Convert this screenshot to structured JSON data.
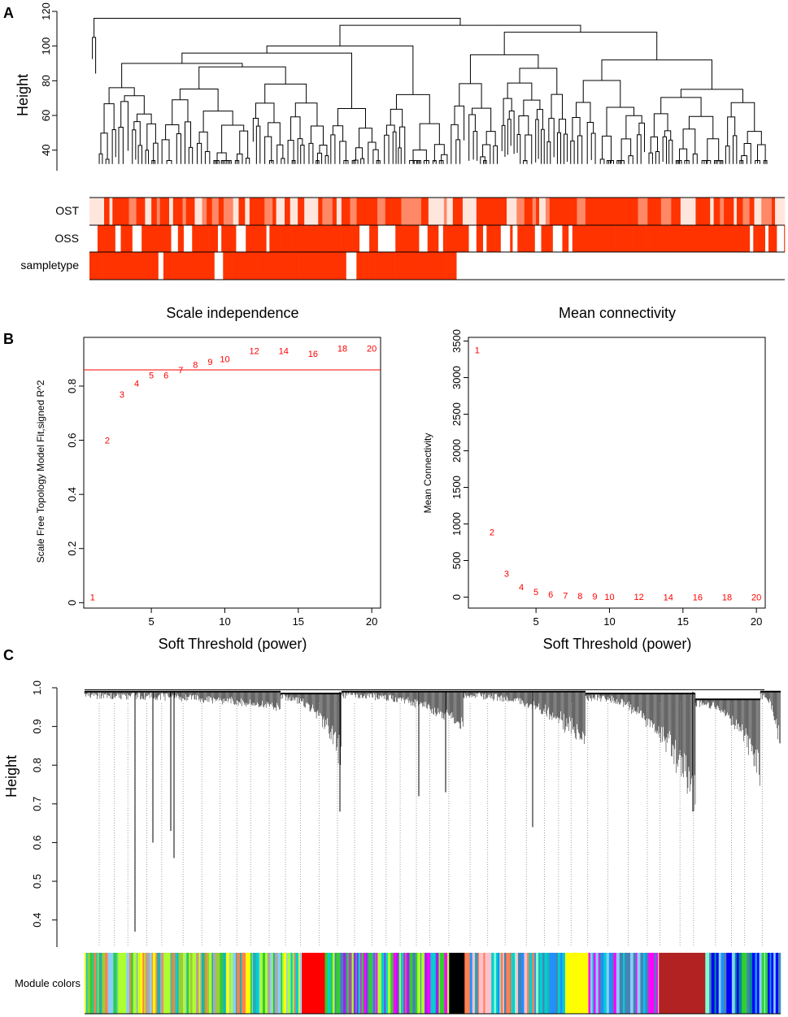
{
  "panels": {
    "a": {
      "letter": "A"
    },
    "b": {
      "letter": "B"
    },
    "c": {
      "letter": "C"
    }
  },
  "chart_data": [
    {
      "type": "dendrogram",
      "panel": "A",
      "ylabel": "Height",
      "ylim": [
        30,
        120
      ],
      "yticks": [
        40,
        60,
        80,
        100,
        120
      ],
      "track_labels": [
        "OST",
        "OSS",
        "sampletype"
      ],
      "colors": {
        "high": "#ff3300",
        "mid": "#ff8866",
        "low": "#ffe6dd",
        "none": "#ffffff"
      }
    },
    {
      "type": "scatter",
      "panel": "B-left",
      "title": "Scale independence",
      "xlabel": "Soft Threshold (power)",
      "ylabel": "Scale Free Topology Model Fit,signed R^2",
      "x": [
        1,
        2,
        3,
        4,
        5,
        6,
        7,
        8,
        9,
        10,
        12,
        14,
        16,
        18,
        20
      ],
      "y": [
        0.02,
        0.6,
        0.77,
        0.81,
        0.84,
        0.84,
        0.86,
        0.88,
        0.89,
        0.9,
        0.93,
        0.93,
        0.92,
        0.94,
        0.94
      ],
      "labels": [
        "1",
        "2",
        "3",
        "4",
        "5",
        "6",
        "7",
        "8",
        "9",
        "10",
        "12",
        "14",
        "16",
        "18",
        "20"
      ],
      "xlim": [
        0.4,
        20.6
      ],
      "ylim": [
        -0.02,
        0.98
      ],
      "xticks": [
        5,
        10,
        15,
        20
      ],
      "yticks": [
        0.0,
        0.2,
        0.4,
        0.6,
        0.8
      ],
      "hline": 0.86,
      "color": "#ff0000"
    },
    {
      "type": "scatter",
      "panel": "B-right",
      "title": "Mean connectivity",
      "xlabel": "Soft Threshold (power)",
      "ylabel": "Mean Connectivity",
      "x": [
        1,
        2,
        3,
        4,
        5,
        6,
        7,
        8,
        9,
        10,
        12,
        14,
        16,
        18,
        20
      ],
      "y": [
        3380,
        890,
        320,
        140,
        70,
        40,
        25,
        15,
        10,
        6,
        4,
        2,
        1,
        1,
        1
      ],
      "labels": [
        "1",
        "2",
        "3",
        "4",
        "5",
        "6",
        "7",
        "8",
        "9",
        "10",
        "12",
        "14",
        "16",
        "18",
        "20"
      ],
      "xlim": [
        0.4,
        20.6
      ],
      "ylim": [
        -150,
        3550
      ],
      "xticks": [
        5,
        10,
        15,
        20
      ],
      "yticks": [
        0,
        500,
        1000,
        1500,
        2000,
        2500,
        3000,
        3500
      ],
      "color": "#ff0000"
    },
    {
      "type": "dendrogram",
      "panel": "C",
      "ylabel": "Height",
      "ylim": [
        0.33,
        1.0
      ],
      "yticks": [
        0.4,
        0.5,
        0.6,
        0.7,
        0.8,
        0.9,
        1.0
      ],
      "track_labels": [
        "Module colors"
      ],
      "module_palette": [
        "#ff0000",
        "#a020f0",
        "#000000",
        "#ffff00",
        "#ff00ff",
        "#b22222",
        "#0000ff",
        "#00ced1",
        "#32cd32",
        "#1e90ff",
        "#adff2f",
        "#20b2aa",
        "#87cefa",
        "#ff7f50",
        "#ffc0cb",
        "#8b4513",
        "#00ff7f",
        "#4682b4",
        "#9acd32",
        "#ffd700",
        "#008b8b",
        "#7fffd4"
      ],
      "module_blocks": [
        {
          "color": "mixed-teal-green",
          "width": 0.28
        },
        {
          "color": "#ff0000",
          "width": 0.03
        },
        {
          "color": "mixed-purple-teal",
          "width": 0.16
        },
        {
          "color": "#000000",
          "width": 0.02
        },
        {
          "color": "mixed-cyan-blue",
          "width": 0.13
        },
        {
          "color": "#ffff00",
          "width": 0.03
        },
        {
          "color": "mixed-blue-magenta",
          "width": 0.09
        },
        {
          "color": "#b22222",
          "width": 0.06
        },
        {
          "color": "mixed-blue",
          "width": 0.1
        }
      ]
    }
  ]
}
